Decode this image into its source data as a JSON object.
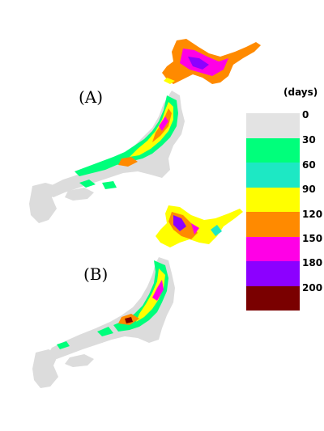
{
  "panels": [
    {
      "label": "(A)"
    },
    {
      "label": "(B)"
    }
  ],
  "legend": {
    "units": "(days)",
    "ticks": [
      "0",
      "30",
      "60",
      "90",
      "120",
      "150",
      "180",
      "200"
    ],
    "colors": [
      "#e3e3e3",
      "#00ff7b",
      "#1de8c4",
      "#ffff00",
      "#ff8a00",
      "#ff00e6",
      "#8c00ff",
      "#7a0000"
    ]
  },
  "map_colors": {
    "land_base": "#dcdcdc",
    "green": "#00ff7b",
    "yellow": "#ffff00",
    "orange": "#ff8a00",
    "magenta": "#ff00e6",
    "purple": "#8c00ff",
    "darkred": "#7a0000"
  }
}
